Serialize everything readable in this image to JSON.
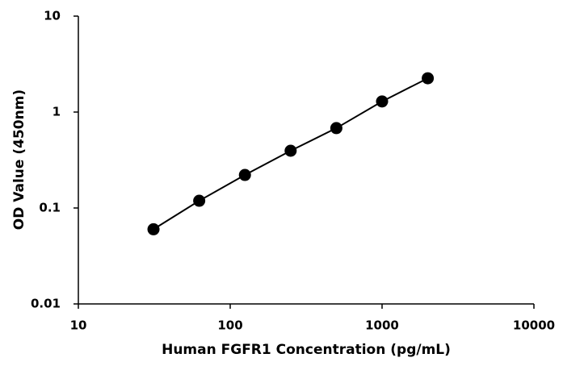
{
  "chart_data": {
    "type": "scatter",
    "x_label": "Human FGFR1 Concentration (pg/mL)",
    "y_label": "OD Value (450nm)",
    "x": [
      31.25,
      62.5,
      125,
      250,
      500,
      1000,
      2000
    ],
    "values": [
      0.06,
      0.119,
      0.221,
      0.395,
      0.68,
      1.29,
      2.25
    ],
    "color": "#000000",
    "connect": true,
    "x_log": true,
    "y_log": true,
    "xlim": [
      10,
      10000
    ],
    "xticks": [
      10,
      100,
      1000,
      10000
    ],
    "ylim": [
      0.01,
      10
    ],
    "yticks": [
      0.01,
      0.1,
      1,
      10
    ],
    "grid": false
  }
}
